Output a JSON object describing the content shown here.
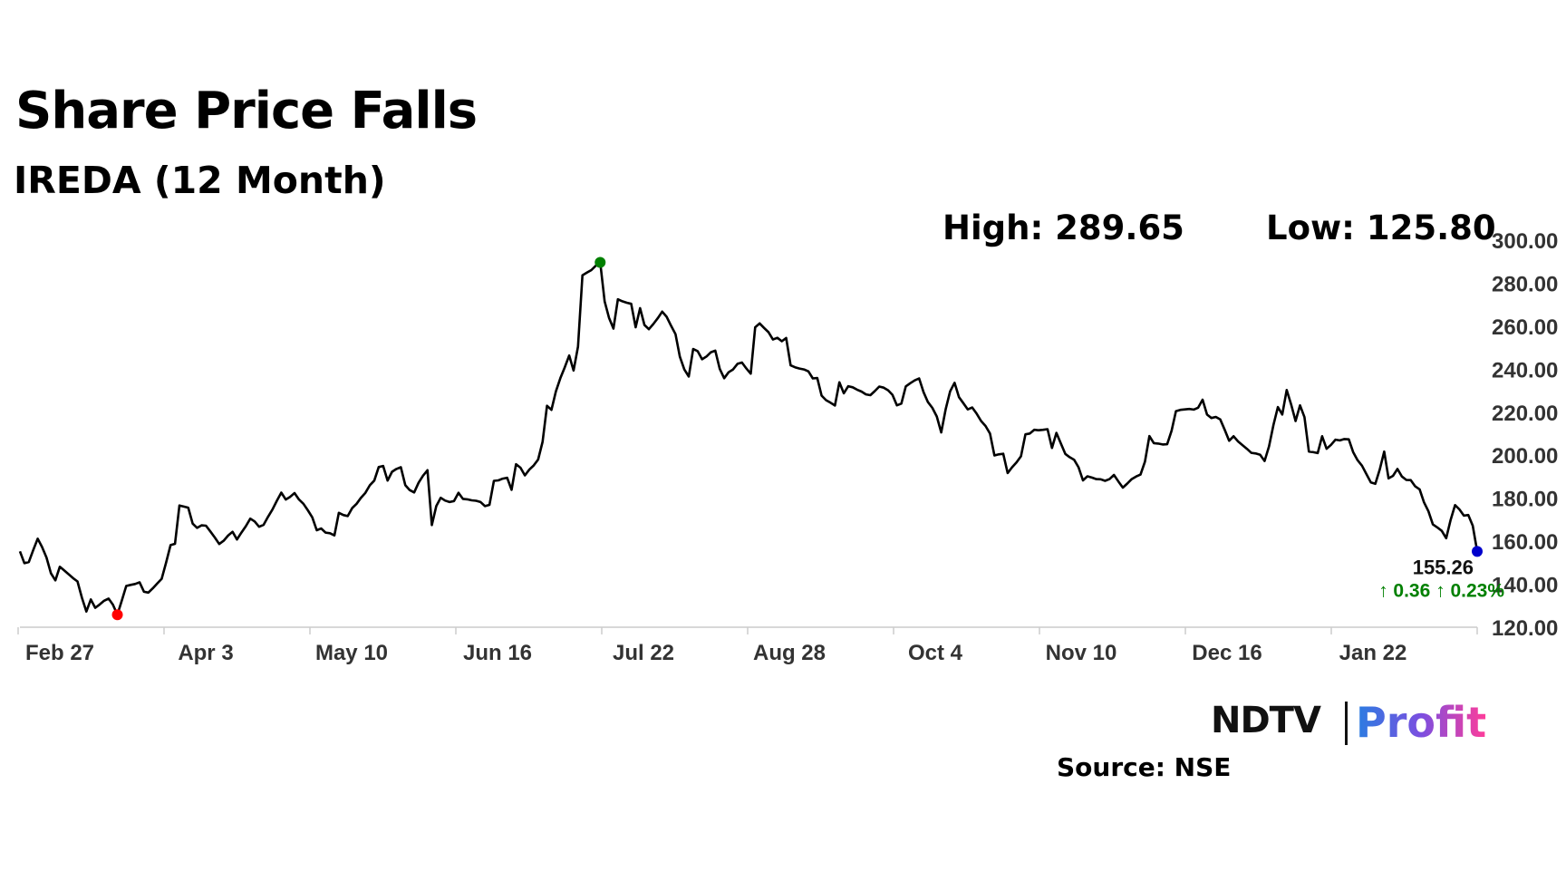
{
  "header": {
    "title": "Share Price Falls",
    "subtitle": "IREDA (12 Month)",
    "high_label": "High: 289.65",
    "low_label": "Low: 125.80"
  },
  "footer": {
    "brand_ndtv": "NDTV",
    "brand_profit": "Profit",
    "source": "Source: NSE"
  },
  "colors": {
    "line": "#000000",
    "high_marker": "#008000",
    "low_marker": "#ff0000",
    "last_marker": "#0000cc",
    "change_text": "#008000",
    "axis": "#cccccc"
  },
  "chart_data": {
    "type": "line",
    "x_tick_labels": [
      "Feb 27",
      "Apr 3",
      "May 10",
      "Jun 16",
      "Jul 22",
      "Aug 28",
      "Oct 4",
      "Nov 10",
      "Dec 16",
      "Jan 22"
    ],
    "y_tick_labels": [
      "120.00",
      "140.00",
      "160.00",
      "180.00",
      "200.00",
      "220.00",
      "240.00",
      "260.00",
      "280.00",
      "300.00"
    ],
    "ylim": [
      120,
      300
    ],
    "high": 289.65,
    "low": 125.8,
    "last_value": "155.26",
    "change_label": "↑ 0.36 ↑ 0.23%",
    "grid": false,
    "series": [
      {
        "values": [
          155.3,
          149.8,
          150.3,
          155.9,
          161.2,
          157.3,
          152.4,
          145.1,
          141.8,
          148.1,
          146.4,
          144.6,
          142.8,
          141.3,
          133.7,
          127.3,
          132.9,
          129.0,
          130.6,
          132.3,
          133.3,
          130.5,
          125.8,
          132.4,
          139.2,
          139.7,
          140.1,
          140.9,
          136.5,
          136.1,
          138.1,
          140.3,
          142.5,
          150.1,
          158.2,
          158.8,
          176.6,
          176.1,
          175.6,
          168.2,
          166.2,
          167.4,
          167.2,
          164.5,
          161.7,
          158.7,
          160.2,
          162.6,
          164.4,
          160.8,
          164.0,
          167.0,
          170.5,
          169.2,
          166.7,
          167.6,
          171.3,
          174.7,
          178.8,
          182.6,
          179.4,
          180.6,
          182.4,
          179.4,
          177.4,
          174.4,
          171.1,
          165.1,
          165.9,
          164.0,
          163.7,
          162.7,
          173.2,
          172.2,
          171.7,
          175.4,
          177.4,
          180.2,
          182.5,
          186.0,
          188.2,
          194.5,
          195.0,
          188.2,
          192.3,
          193.6,
          194.4,
          186.1,
          183.8,
          182.7,
          187.2,
          190.5,
          193.0,
          167.5,
          176.3,
          180.2,
          178.9,
          178.2,
          178.7,
          182.5,
          179.7,
          179.5,
          179.0,
          178.8,
          178.2,
          176.3,
          176.9,
          188.1,
          188.3,
          189.1,
          189.5,
          183.9,
          195.8,
          194.2,
          190.6,
          193.3,
          195.3,
          198.0,
          206.2,
          223.0,
          221.1,
          229.7,
          235.8,
          240.9,
          246.4,
          239.4,
          250.5,
          283.7,
          284.9,
          286.1,
          288.1,
          289.7,
          271.5,
          263.9,
          258.9,
          272.5,
          271.6,
          270.9,
          270.4,
          259.5,
          268.4,
          260.6,
          258.6,
          261.0,
          263.7,
          266.8,
          264.4,
          260.2,
          256.3,
          245.8,
          239.9,
          236.6,
          249.4,
          248.4,
          244.6,
          245.9,
          247.9,
          248.6,
          240.2,
          235.8,
          238.6,
          239.9,
          242.5,
          243.1,
          240.3,
          237.9,
          259.5,
          261.3,
          259.2,
          257.2,
          253.8,
          254.6,
          253.0,
          254.5,
          241.8,
          240.9,
          240.3,
          239.9,
          239.0,
          235.7,
          235.9,
          227.7,
          225.6,
          224.4,
          223.1,
          233.9,
          228.8,
          232.1,
          231.6,
          230.5,
          229.6,
          228.3,
          227.9,
          229.8,
          231.9,
          231.4,
          230.2,
          228.1,
          223.2,
          224.0,
          232.0,
          233.5,
          234.8,
          235.7,
          229.3,
          224.7,
          222.0,
          218.0,
          210.6,
          221.4,
          229.7,
          233.7,
          227.0,
          224.2,
          221.3,
          222.2,
          219.3,
          215.9,
          213.6,
          210.1,
          199.9,
          200.4,
          200.7,
          191.7,
          194.4,
          196.7,
          199.5,
          209.7,
          210.1,
          211.8,
          211.6,
          211.8,
          212.1,
          203.4,
          210.4,
          205.5,
          200.6,
          199.1,
          197.9,
          194.4,
          188.3,
          190.2,
          189.6,
          188.9,
          188.8,
          188.1,
          188.9,
          190.8,
          187.8,
          184.9,
          186.8,
          188.9,
          190.1,
          191.0,
          197.0,
          208.9,
          205.6,
          205.4,
          205.0,
          205.1,
          211.4,
          220.5,
          221.1,
          221.3,
          221.5,
          221.2,
          222.1,
          225.8,
          218.9,
          217.3,
          217.8,
          216.6,
          211.8,
          206.7,
          208.8,
          206.4,
          204.7,
          203.0,
          201.1,
          200.8,
          200.2,
          197.3,
          204.1,
          214.1,
          222.4,
          218.9,
          230.3,
          223.6,
          215.9,
          223.2,
          217.7,
          201.7,
          201.4,
          201.0,
          208.8,
          203.0,
          204.8,
          207.2,
          206.9,
          207.5,
          207.4,
          201.5,
          197.7,
          195.1,
          191.2,
          187.3,
          186.7,
          193.4,
          201.7,
          189.2,
          190.4,
          193.6,
          190.1,
          188.5,
          188.4,
          185.5,
          184.1,
          178.1,
          173.9,
          167.8,
          166.4,
          164.8,
          161.4,
          169.9,
          176.8,
          174.8,
          171.9,
          172.2,
          167.2,
          155.3
        ]
      }
    ]
  }
}
